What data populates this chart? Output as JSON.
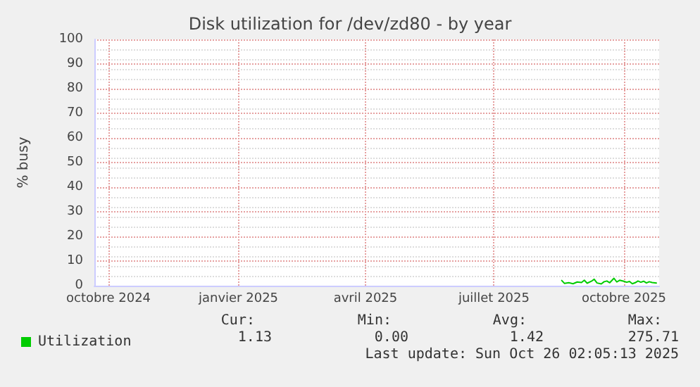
{
  "chart_data": {
    "type": "line",
    "title": "Disk utilization for /dev/zd80 - by year",
    "ylabel": "% busy",
    "xlim": [
      "2024-09-21",
      "2025-10-26"
    ],
    "ylim": [
      0,
      100
    ],
    "yticks": [
      0,
      10,
      20,
      30,
      40,
      50,
      60,
      70,
      80,
      90,
      100
    ],
    "xticks": [
      {
        "value": "2024-10-01",
        "label": "octobre 2024"
      },
      {
        "value": "2025-01-01",
        "label": "janvier 2025"
      },
      {
        "value": "2025-04-01",
        "label": "avril 2025"
      },
      {
        "value": "2025-07-01",
        "label": "juillet 2025"
      },
      {
        "value": "2025-10-01",
        "label": "octobre 2025"
      }
    ],
    "grid": true,
    "legend": "bottom left",
    "marker": "none",
    "line_style": "solid",
    "series": [
      {
        "name": "Utilization",
        "color": "#00cc00",
        "x": [
          "2025-08-18",
          "2025-08-20",
          "2025-08-23",
          "2025-08-26",
          "2025-08-29",
          "2025-09-01",
          "2025-09-03",
          "2025-09-05",
          "2025-09-08",
          "2025-09-10",
          "2025-09-12",
          "2025-09-15",
          "2025-09-17",
          "2025-09-19",
          "2025-09-21",
          "2025-09-24",
          "2025-09-26",
          "2025-09-28",
          "2025-10-01",
          "2025-10-03",
          "2025-10-05",
          "2025-10-07",
          "2025-10-09",
          "2025-10-11",
          "2025-10-13",
          "2025-10-15",
          "2025-10-17",
          "2025-10-19",
          "2025-10-21",
          "2025-10-24"
        ],
        "values": [
          2.1,
          0.9,
          1.2,
          0.8,
          1.5,
          1.3,
          2.2,
          1.0,
          1.8,
          2.6,
          1.1,
          0.7,
          1.6,
          1.9,
          1.2,
          3.0,
          1.5,
          2.2,
          1.8,
          1.4,
          1.7,
          0.8,
          1.2,
          1.9,
          1.4,
          1.8,
          1.1,
          1.6,
          1.3,
          1.1
        ]
      }
    ],
    "annotations": [
      "Cur:",
      "Min:",
      "Avg:",
      "Max:",
      "1.13",
      "0.00",
      "1.42",
      "275.71",
      "Last update: Sun Oct 26 02:05:13 2025"
    ]
  }
}
